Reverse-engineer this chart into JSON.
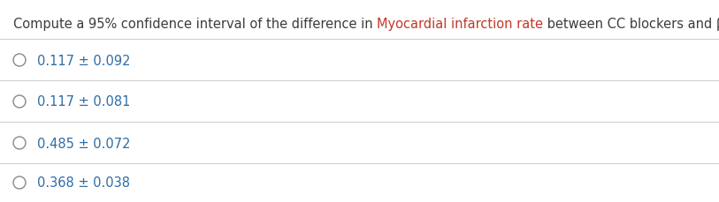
{
  "title_parts": [
    {
      "text": "Compute a 95% confidence interval of the difference in ",
      "color": "#3c3c3c"
    },
    {
      "text": "Myocardial infarction rate",
      "color": "#c0392b"
    },
    {
      "text": " between CC blockers and β-blockers.",
      "color": "#3c3c3c"
    }
  ],
  "options": [
    "0.117 ± 0.092",
    "0.117 ± 0.081",
    "0.485 ± 0.072",
    "0.368 ± 0.038"
  ],
  "option_color": "#2e6da4",
  "option_fontsize": 10.5,
  "title_fontsize": 10.5,
  "circle_color": "#888888",
  "line_color": "#d0d0d0",
  "background_color": "#ffffff"
}
